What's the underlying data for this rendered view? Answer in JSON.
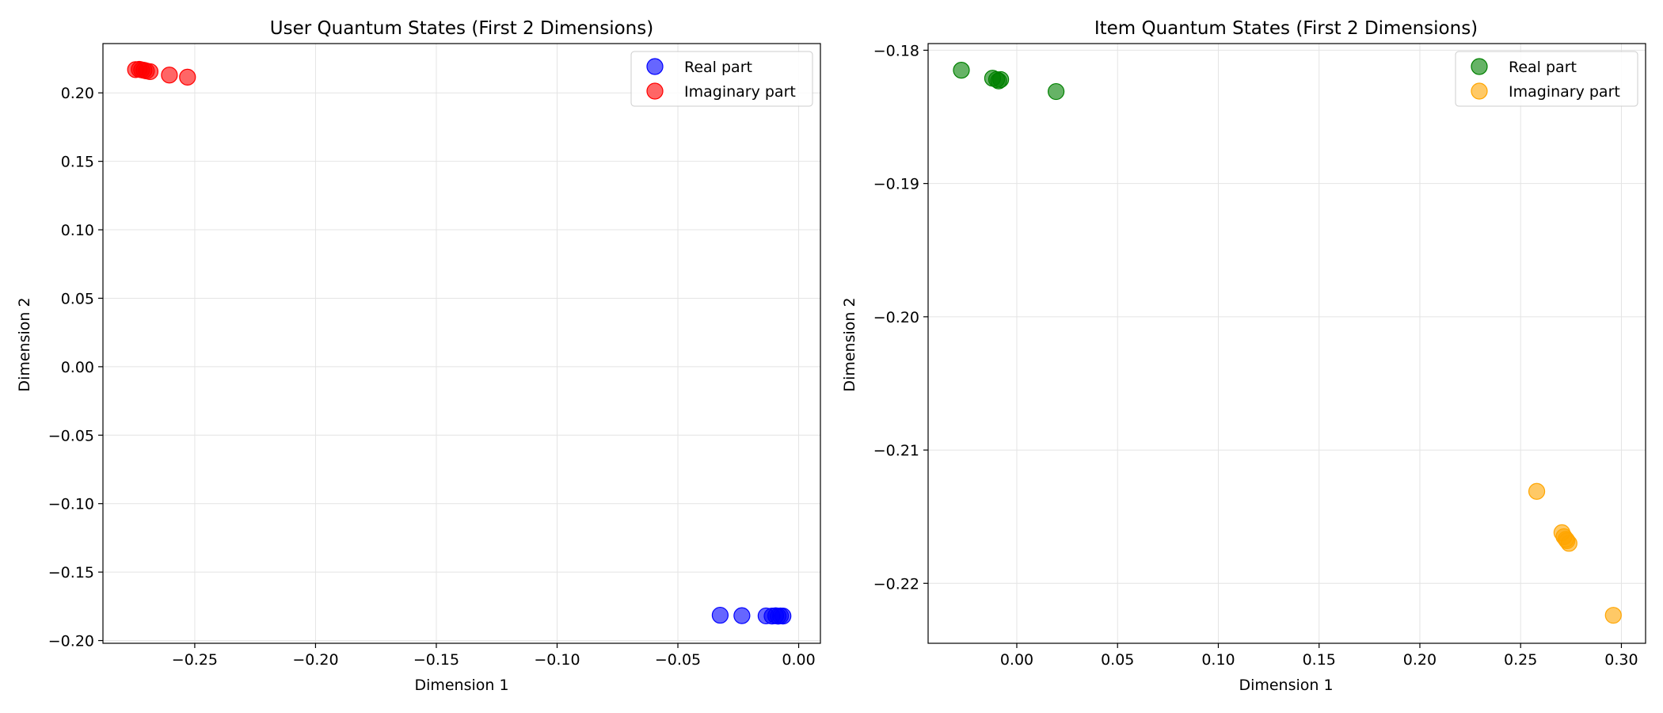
{
  "chart_data": [
    {
      "type": "scatter",
      "title": "User Quantum States (First 2 Dimensions)",
      "xlabel": "Dimension 1",
      "ylabel": "Dimension 2",
      "xlim": [
        -0.288,
        0.009
      ],
      "ylim": [
        -0.202,
        0.236
      ],
      "xticks": [
        -0.25,
        -0.2,
        -0.15,
        -0.1,
        -0.05,
        0.0
      ],
      "xtick_labels": [
        "−0.25",
        "−0.20",
        "−0.15",
        "−0.10",
        "−0.05",
        "0.00"
      ],
      "yticks": [
        -0.2,
        -0.15,
        -0.1,
        -0.05,
        0.0,
        0.05,
        0.1,
        0.15,
        0.2
      ],
      "ytick_labels": [
        "−0.20",
        "−0.15",
        "−0.10",
        "−0.05",
        "0.00",
        "0.05",
        "0.10",
        "0.15",
        "0.20"
      ],
      "grid": true,
      "legend": "top-right",
      "series": [
        {
          "name": "Real part",
          "color": "#0000ff",
          "x": [
            -0.0325,
            -0.0235,
            -0.0135,
            -0.011,
            -0.0095,
            -0.0085,
            -0.0075,
            -0.0065
          ],
          "y": [
            -0.1815,
            -0.1818,
            -0.182,
            -0.1821,
            -0.1819,
            -0.1822,
            -0.182,
            -0.1821
          ]
        },
        {
          "name": "Imaginary part",
          "color": "#ff0000",
          "x": [
            -0.2745,
            -0.273,
            -0.272,
            -0.271,
            -0.27,
            -0.2685,
            -0.2605,
            -0.253
          ],
          "y": [
            0.217,
            0.2172,
            0.2168,
            0.2165,
            0.216,
            0.2155,
            0.213,
            0.2115
          ]
        }
      ]
    },
    {
      "type": "scatter",
      "title": "Item Quantum States (First 2 Dimensions)",
      "xlabel": "Dimension 1",
      "ylabel": "Dimension 2",
      "xlim": [
        -0.044,
        0.312
      ],
      "ylim": [
        -0.2245,
        -0.1795
      ],
      "xticks": [
        0.0,
        0.05,
        0.1,
        0.15,
        0.2,
        0.25,
        0.3
      ],
      "xtick_labels": [
        "0.00",
        "0.05",
        "0.10",
        "0.15",
        "0.20",
        "0.25",
        "0.30"
      ],
      "yticks": [
        -0.22,
        -0.21,
        -0.2,
        -0.19,
        -0.18
      ],
      "ytick_labels": [
        "−0.22",
        "−0.21",
        "−0.20",
        "−0.19",
        "−0.18"
      ],
      "grid": true,
      "legend": "top-right",
      "series": [
        {
          "name": "Real part",
          "color": "#008000",
          "x": [
            -0.0275,
            -0.012,
            -0.01,
            -0.009,
            -0.008,
            0.0195
          ],
          "y": [
            -0.1815,
            -0.1821,
            -0.1822,
            -0.1823,
            -0.1822,
            -0.1831
          ]
        },
        {
          "name": "Imaginary part",
          "color": "#ffa500",
          "x": [
            0.258,
            0.2705,
            0.2715,
            0.2725,
            0.273,
            0.274,
            0.296
          ],
          "y": [
            -0.2131,
            -0.2162,
            -0.2165,
            -0.2167,
            -0.2168,
            -0.217,
            -0.2224
          ]
        }
      ]
    }
  ]
}
